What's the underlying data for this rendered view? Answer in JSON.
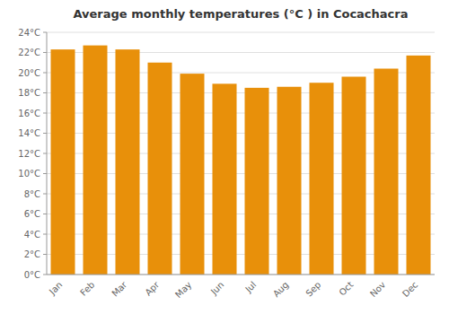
{
  "chart_data": {
    "type": "bar",
    "title": "Average monthly temperatures (°C ) in Cocachacra",
    "categories": [
      "Jan",
      "Feb",
      "Mar",
      "Apr",
      "May",
      "Jun",
      "Jul",
      "Aug",
      "Sep",
      "Oct",
      "Nov",
      "Dec"
    ],
    "values": [
      22.3,
      22.7,
      22.3,
      21.0,
      19.9,
      18.9,
      18.5,
      18.6,
      19.0,
      19.6,
      20.4,
      21.7
    ],
    "color": "#E8900A",
    "ylim": [
      0,
      24
    ],
    "yticks": [
      {
        "value": 0,
        "label": "0°C"
      },
      {
        "value": 2,
        "label": "2°C"
      },
      {
        "value": 4,
        "label": "4°C"
      },
      {
        "value": 6,
        "label": "6°C"
      },
      {
        "value": 8,
        "label": "8°C"
      },
      {
        "value": 10,
        "label": "10°C"
      },
      {
        "value": 12,
        "label": "12°C"
      },
      {
        "value": 14,
        "label": "14°C"
      },
      {
        "value": 16,
        "label": "16°C"
      },
      {
        "value": 18,
        "label": "18°C"
      },
      {
        "value": 20,
        "label": "20°C"
      },
      {
        "value": 22,
        "label": "22°C"
      },
      {
        "value": 24,
        "label": "24°C"
      }
    ],
    "grid": true
  }
}
